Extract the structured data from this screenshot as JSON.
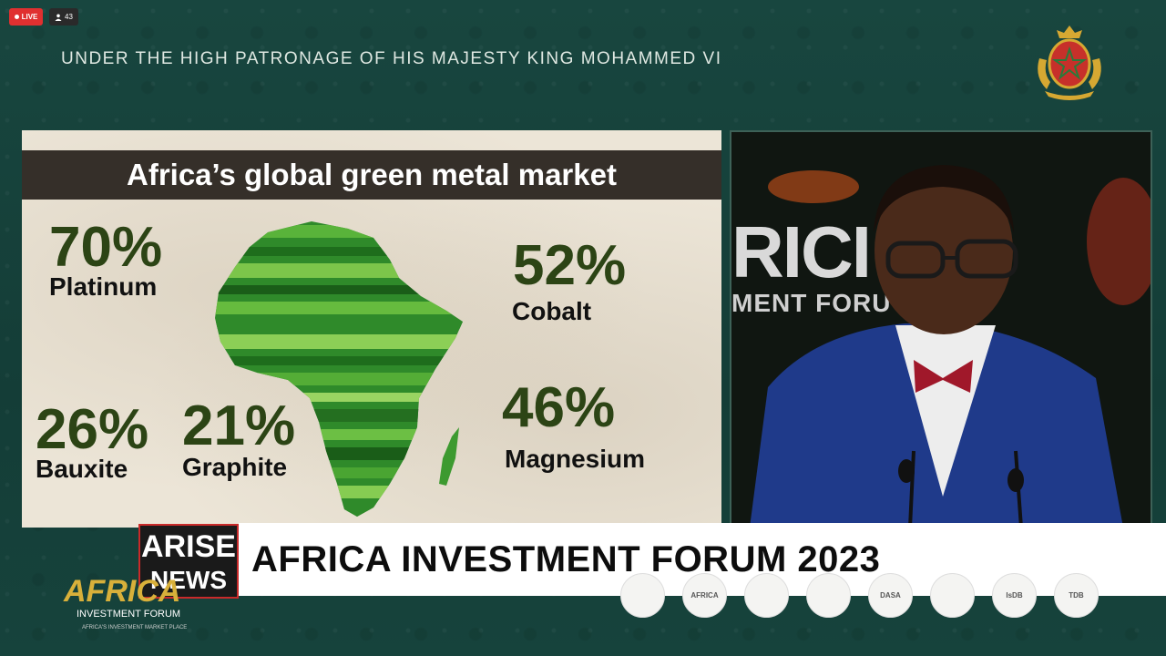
{
  "stream": {
    "live_label": "LIVE",
    "viewer_count": "43"
  },
  "header": {
    "patronage": "UNDER THE HIGH PATRONAGE OF HIS MAJESTY KING MOHAMMED VI"
  },
  "slide": {
    "title": "Africa’s  global green metal market",
    "stats": [
      {
        "pct": "70%",
        "label": "Platinum"
      },
      {
        "pct": "52%",
        "label": "Cobalt"
      },
      {
        "pct": "26%",
        "label": "Bauxite"
      },
      {
        "pct": "21%",
        "label": "Graphite"
      },
      {
        "pct": "46%",
        "label": "Magnesium"
      }
    ]
  },
  "video": {
    "backdrop_text": "RICI",
    "backdrop_text2": "MENT FORU"
  },
  "lower_third": {
    "title": "AFRICA INVESTMENT FORUM 2023",
    "brand_top": "ARISE",
    "brand_bottom": "NEWS",
    "partners": [
      "",
      "AFRICA",
      "",
      "",
      "DASA",
      "",
      "IsDB",
      "TDB"
    ]
  },
  "forum_logo": {
    "name": "AFRICA",
    "subtitle": "INVESTMENT FORUM",
    "tagline": "AFRICA'S INVESTMENT MARKET PLACE"
  },
  "colors": {
    "accent_green": "#2c4415",
    "lower_third_bg": "#ffffff",
    "live_red": "#e03030"
  }
}
